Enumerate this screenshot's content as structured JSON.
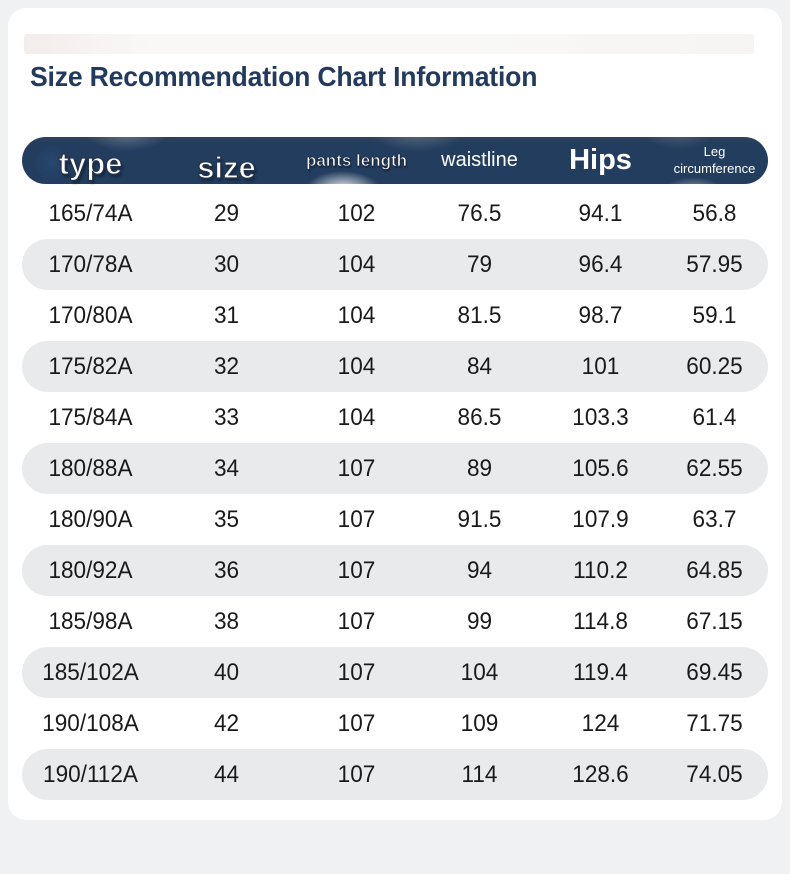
{
  "page": {
    "title": "Size Recommendation Chart Information"
  },
  "chart_data": {
    "type": "table",
    "title": "Size Recommendation Chart Information",
    "columns": [
      "type",
      "size",
      "pants length",
      "waistline",
      "Hips",
      "Leg circumference"
    ],
    "rows": [
      [
        "165/74A",
        "29",
        "102",
        "76.5",
        "94.1",
        "56.8"
      ],
      [
        "170/78A",
        "30",
        "104",
        "79",
        "96.4",
        "57.95"
      ],
      [
        "170/80A",
        "31",
        "104",
        "81.5",
        "98.7",
        "59.1"
      ],
      [
        "175/82A",
        "32",
        "104",
        "84",
        "101",
        "60.25"
      ],
      [
        "175/84A",
        "33",
        "104",
        "86.5",
        "103.3",
        "61.4"
      ],
      [
        "180/88A",
        "34",
        "107",
        "89",
        "105.6",
        "62.55"
      ],
      [
        "180/90A",
        "35",
        "107",
        "91.5",
        "107.9",
        "63.7"
      ],
      [
        "180/92A",
        "36",
        "107",
        "94",
        "110.2",
        "64.85"
      ],
      [
        "185/98A",
        "38",
        "107",
        "99",
        "114.8",
        "67.15"
      ],
      [
        "185/102A",
        "40",
        "107",
        "104",
        "119.4",
        "69.45"
      ],
      [
        "190/108A",
        "42",
        "107",
        "109",
        "124",
        "71.75"
      ],
      [
        "190/112A",
        "44",
        "107",
        "114",
        "128.6",
        "74.05"
      ]
    ],
    "layout": {
      "row_striping": "even rows light gray pills",
      "legend_position": "none",
      "grid": false
    }
  },
  "colors": {
    "header_bg": "#223d5e",
    "header_text": "#ffffff",
    "title_text": "#233a5f",
    "row_alt_bg": "#e8eaec",
    "cell_text": "#1a1a1a",
    "page_bg": "#f0f1f2",
    "card_bg": "#ffffff"
  }
}
